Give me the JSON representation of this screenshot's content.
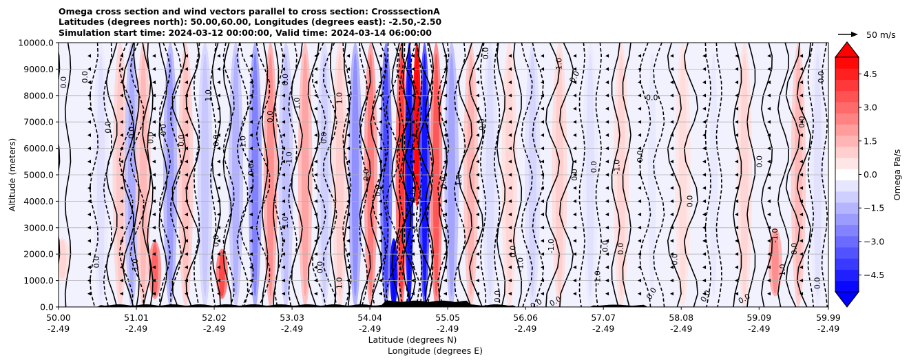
{
  "chart_data": {
    "type": "heatmap",
    "title": [
      "Omega cross section and wind vectors parallel to cross section: CrosssectionA",
      "Latitudes (degrees north): 50.00,60.00, Longitudes (degrees east): -2.50,-2.50",
      "Simulation start time: 2024-03-12 00:00:00, Valid time: 2024-03-14 06:00:00"
    ],
    "ylabel": "Altitude (meters)",
    "xlabel": "Latitude (degrees N)",
    "xlabel2": "Longitude (degrees E)",
    "ylim": [
      0,
      10000
    ],
    "yticks": [
      "0.0",
      "1000.0",
      "2000.0",
      "3000.0",
      "4000.0",
      "5000.0",
      "6000.0",
      "7000.0",
      "8000.0",
      "9000.0",
      "10000.0"
    ],
    "xlim": [
      50.0,
      59.99
    ],
    "xticks": [
      {
        "lat": "50.00",
        "lon": "-2.49",
        "value": 50.0
      },
      {
        "lat": "51.01",
        "lon": "-2.49",
        "value": 51.01
      },
      {
        "lat": "52.02",
        "lon": "-2.49",
        "value": 52.02
      },
      {
        "lat": "53.03",
        "lon": "-2.49",
        "value": 53.03
      },
      {
        "lat": "54.04",
        "lon": "-2.49",
        "value": 54.04
      },
      {
        "lat": "55.05",
        "lon": "-2.49",
        "value": 55.05
      },
      {
        "lat": "56.06",
        "lon": "-2.49",
        "value": 56.06
      },
      {
        "lat": "57.07",
        "lon": "-2.49",
        "value": 57.07
      },
      {
        "lat": "58.08",
        "lon": "-2.49",
        "value": 58.08
      },
      {
        "lat": "59.09",
        "lon": "-2.49",
        "value": 59.09
      },
      {
        "lat": "59.99",
        "lon": "-2.49",
        "value": 59.99
      }
    ],
    "grid": true,
    "colorbar": {
      "label": "Omega Pa/s",
      "range": [
        -5.25,
        5.25
      ],
      "extend": "both",
      "ticks": [
        "4.5",
        "3.0",
        "1.5",
        "0.0",
        "−1.5",
        "−3.0",
        "−4.5"
      ],
      "tick_values": [
        4.5,
        3.0,
        1.5,
        0.0,
        -1.5,
        -3.0,
        -4.5
      ],
      "high_color": "#ff0000",
      "low_color": "#0000ff"
    },
    "vector_key": {
      "label": "50 m/s"
    },
    "omega_bands": [
      {
        "lat": 50.05,
        "value": 0.6,
        "alt": [
          1000,
          2600
        ]
      },
      {
        "lat": 50.55,
        "value": -0.4,
        "alt": [
          0,
          10000
        ]
      },
      {
        "lat": 50.8,
        "value": 0.8,
        "alt": [
          0,
          10000
        ]
      },
      {
        "lat": 50.95,
        "value": -1.2,
        "alt": [
          0,
          10000
        ]
      },
      {
        "lat": 51.1,
        "value": 1.0,
        "alt": [
          0,
          10000
        ]
      },
      {
        "lat": 51.25,
        "value": 2.2,
        "alt": [
          300,
          2500
        ]
      },
      {
        "lat": 51.45,
        "value": -1.4,
        "alt": [
          0,
          10000
        ]
      },
      {
        "lat": 51.65,
        "value": 0.9,
        "alt": [
          0,
          10000
        ]
      },
      {
        "lat": 51.9,
        "value": -0.8,
        "alt": [
          0,
          10000
        ]
      },
      {
        "lat": 52.12,
        "value": 2.6,
        "alt": [
          300,
          2200
        ]
      },
      {
        "lat": 52.3,
        "value": -1.1,
        "alt": [
          0,
          10000
        ]
      },
      {
        "lat": 52.55,
        "value": -1.8,
        "alt": [
          0,
          10000
        ]
      },
      {
        "lat": 52.75,
        "value": 1.6,
        "alt": [
          0,
          10000
        ]
      },
      {
        "lat": 52.95,
        "value": -0.9,
        "alt": [
          0,
          10000
        ]
      },
      {
        "lat": 53.2,
        "value": 1.3,
        "alt": [
          0,
          10000
        ]
      },
      {
        "lat": 53.45,
        "value": -0.7,
        "alt": [
          0,
          10000
        ]
      },
      {
        "lat": 53.65,
        "value": 0.7,
        "alt": [
          0,
          10000
        ]
      },
      {
        "lat": 53.85,
        "value": -1.6,
        "alt": [
          0,
          10000
        ]
      },
      {
        "lat": 54.05,
        "value": 1.9,
        "alt": [
          0,
          10000
        ]
      },
      {
        "lat": 54.25,
        "value": -2.6,
        "alt": [
          0,
          10000
        ]
      },
      {
        "lat": 54.35,
        "value": -5.0,
        "alt": [
          0,
          2600
        ]
      },
      {
        "lat": 54.45,
        "value": 2.8,
        "alt": [
          0,
          10000
        ]
      },
      {
        "lat": 54.55,
        "value": -4.8,
        "alt": [
          0,
          10000
        ]
      },
      {
        "lat": 54.65,
        "value": 5.0,
        "alt": [
          3800,
          10000
        ]
      },
      {
        "lat": 54.75,
        "value": -3.5,
        "alt": [
          0,
          10000
        ]
      },
      {
        "lat": 54.9,
        "value": 2.4,
        "alt": [
          0,
          10000
        ]
      },
      {
        "lat": 55.1,
        "value": -1.3,
        "alt": [
          0,
          10000
        ]
      },
      {
        "lat": 55.35,
        "value": 1.1,
        "alt": [
          0,
          10000
        ]
      },
      {
        "lat": 55.6,
        "value": -0.5,
        "alt": [
          0,
          10000
        ]
      },
      {
        "lat": 55.85,
        "value": 0.6,
        "alt": [
          0,
          10000
        ]
      },
      {
        "lat": 56.15,
        "value": -0.6,
        "alt": [
          0,
          10000
        ]
      },
      {
        "lat": 56.5,
        "value": 0.7,
        "alt": [
          0,
          10000
        ]
      },
      {
        "lat": 56.9,
        "value": -0.4,
        "alt": [
          0,
          10000
        ]
      },
      {
        "lat": 57.3,
        "value": 0.6,
        "alt": [
          0,
          10000
        ]
      },
      {
        "lat": 57.7,
        "value": -0.3,
        "alt": [
          0,
          10000
        ]
      },
      {
        "lat": 58.1,
        "value": 0.5,
        "alt": [
          0,
          10000
        ]
      },
      {
        "lat": 58.5,
        "value": -0.3,
        "alt": [
          0,
          10000
        ]
      },
      {
        "lat": 58.9,
        "value": 0.6,
        "alt": [
          0,
          10000
        ]
      },
      {
        "lat": 59.3,
        "value": 1.6,
        "alt": [
          400,
          3000
        ]
      },
      {
        "lat": 59.6,
        "value": 1.0,
        "alt": [
          0,
          10000
        ]
      },
      {
        "lat": 59.85,
        "value": -0.4,
        "alt": [
          0,
          10000
        ]
      }
    ],
    "contour_labels": [
      {
        "text": "0.0",
        "lat": 50.07,
        "alt": 8500,
        "rot": -90
      },
      {
        "text": "0.0",
        "lat": 50.35,
        "alt": 8700,
        "rot": -90
      },
      {
        "text": "0.0",
        "lat": 50.65,
        "alt": 6800,
        "rot": -90
      },
      {
        "text": "0.0",
        "lat": 50.95,
        "alt": 6600,
        "rot": -90
      },
      {
        "text": "0.0",
        "lat": 51.2,
        "alt": 6400,
        "rot": -90
      },
      {
        "text": "0.0",
        "lat": 51.35,
        "alt": 6700,
        "rot": 90
      },
      {
        "text": "0.0",
        "lat": 51.6,
        "alt": 6300,
        "rot": -90
      },
      {
        "text": "1.0",
        "lat": 51.95,
        "alt": 8000,
        "rot": -90
      },
      {
        "text": "0.0",
        "lat": 52.05,
        "alt": 6300,
        "rot": -90
      },
      {
        "text": "0.0",
        "lat": 52.5,
        "alt": 5200,
        "rot": -90
      },
      {
        "text": "-1.0",
        "lat": 52.4,
        "alt": 6200,
        "rot": -90
      },
      {
        "text": "0.0",
        "lat": 52.75,
        "alt": 7200,
        "rot": -90
      },
      {
        "text": "0.0",
        "lat": 52.95,
        "alt": 8600,
        "rot": -90
      },
      {
        "text": "1.0",
        "lat": 53.1,
        "alt": 7700,
        "rot": -90
      },
      {
        "text": "1.0",
        "lat": 53.65,
        "alt": 7900,
        "rot": -90
      },
      {
        "text": "0.0",
        "lat": 53.45,
        "alt": 6400,
        "rot": -90
      },
      {
        "text": "-1.0",
        "lat": 53.0,
        "alt": 5600,
        "rot": -90
      },
      {
        "text": "0.0",
        "lat": 54.0,
        "alt": 5000,
        "rot": -90
      },
      {
        "text": "0.0",
        "lat": 54.15,
        "alt": 4400,
        "rot": -90
      },
      {
        "text": "0.0",
        "lat": 54.6,
        "alt": 4200,
        "rot": -90
      },
      {
        "text": "0.0",
        "lat": 55.0,
        "alt": 4700,
        "rot": -90
      },
      {
        "text": "1.0",
        "lat": 55.2,
        "alt": 4800,
        "rot": -90
      },
      {
        "text": "0.0",
        "lat": 55.5,
        "alt": 6900,
        "rot": -90
      },
      {
        "text": "0.0",
        "lat": 55.55,
        "alt": 9600,
        "rot": -90
      },
      {
        "text": "1.0",
        "lat": 56.5,
        "alt": 9200,
        "rot": -90
      },
      {
        "text": "0.0",
        "lat": 56.7,
        "alt": 8700,
        "rot": -60
      },
      {
        "text": "0.0",
        "lat": 57.7,
        "alt": 7900,
        "rot": 0
      },
      {
        "text": "0.0",
        "lat": 56.7,
        "alt": 5000,
        "rot": -90
      },
      {
        "text": "0.0",
        "lat": 56.95,
        "alt": 5300,
        "rot": -90
      },
      {
        "text": "-1.0",
        "lat": 57.25,
        "alt": 5300,
        "rot": -90
      },
      {
        "text": "0.0",
        "lat": 57.55,
        "alt": 5700,
        "rot": -90
      },
      {
        "text": "0.0",
        "lat": 58.2,
        "alt": 4000,
        "rot": -90
      },
      {
        "text": "0.0",
        "lat": 59.1,
        "alt": 5500,
        "rot": -90
      },
      {
        "text": "0.0",
        "lat": 59.65,
        "alt": 7000,
        "rot": -90
      },
      {
        "text": "0.0",
        "lat": 59.9,
        "alt": 8700,
        "rot": -90
      },
      {
        "text": "0.0",
        "lat": 55.9,
        "alt": 2100,
        "rot": -90
      },
      {
        "text": "-1.0",
        "lat": 56.4,
        "alt": 2300,
        "rot": -90
      },
      {
        "text": "0.0",
        "lat": 57.1,
        "alt": 2300,
        "rot": -90
      },
      {
        "text": "0.0",
        "lat": 57.3,
        "alt": 2200,
        "rot": -90
      },
      {
        "text": "0.0",
        "lat": 58.0,
        "alt": 1800,
        "rot": -90
      },
      {
        "text": "-1.0",
        "lat": 59.3,
        "alt": 2700,
        "rot": -90
      },
      {
        "text": "0.0",
        "lat": 59.55,
        "alt": 2200,
        "rot": -90
      },
      {
        "text": "1.0",
        "lat": 59.4,
        "alt": 1400,
        "rot": -90
      },
      {
        "text": "0.0",
        "lat": 59.85,
        "alt": 900,
        "rot": -90
      },
      {
        "text": "0.0",
        "lat": 56.2,
        "alt": 100,
        "rot": -30
      },
      {
        "text": "0.0",
        "lat": 56.45,
        "alt": 200,
        "rot": -30
      },
      {
        "text": "0.0",
        "lat": 57.7,
        "alt": 500,
        "rot": -60
      },
      {
        "text": "0.0",
        "lat": 58.4,
        "alt": 400,
        "rot": -60
      },
      {
        "text": "0.0",
        "lat": 58.9,
        "alt": 300,
        "rot": -30
      },
      {
        "text": "0.0",
        "lat": 55.7,
        "alt": 400,
        "rot": -90
      },
      {
        "text": "-1.0",
        "lat": 56.0,
        "alt": 1600,
        "rot": -90
      },
      {
        "text": "-1.0",
        "lat": 57.0,
        "alt": 1100,
        "rot": -90
      },
      {
        "text": "0.0",
        "lat": 50.5,
        "alt": 1700,
        "rot": -90
      },
      {
        "text": "1.0",
        "lat": 52.95,
        "alt": 3200,
        "rot": -90
      },
      {
        "text": "0.0",
        "lat": 53.4,
        "alt": 1500,
        "rot": -90
      },
      {
        "text": "1.0",
        "lat": 53.65,
        "alt": 900,
        "rot": -90
      },
      {
        "text": "0.0",
        "lat": 52.05,
        "alt": 2500,
        "rot": -90
      },
      {
        "text": "1.0",
        "lat": 51.0,
        "alt": 1600,
        "rot": -90
      }
    ]
  }
}
